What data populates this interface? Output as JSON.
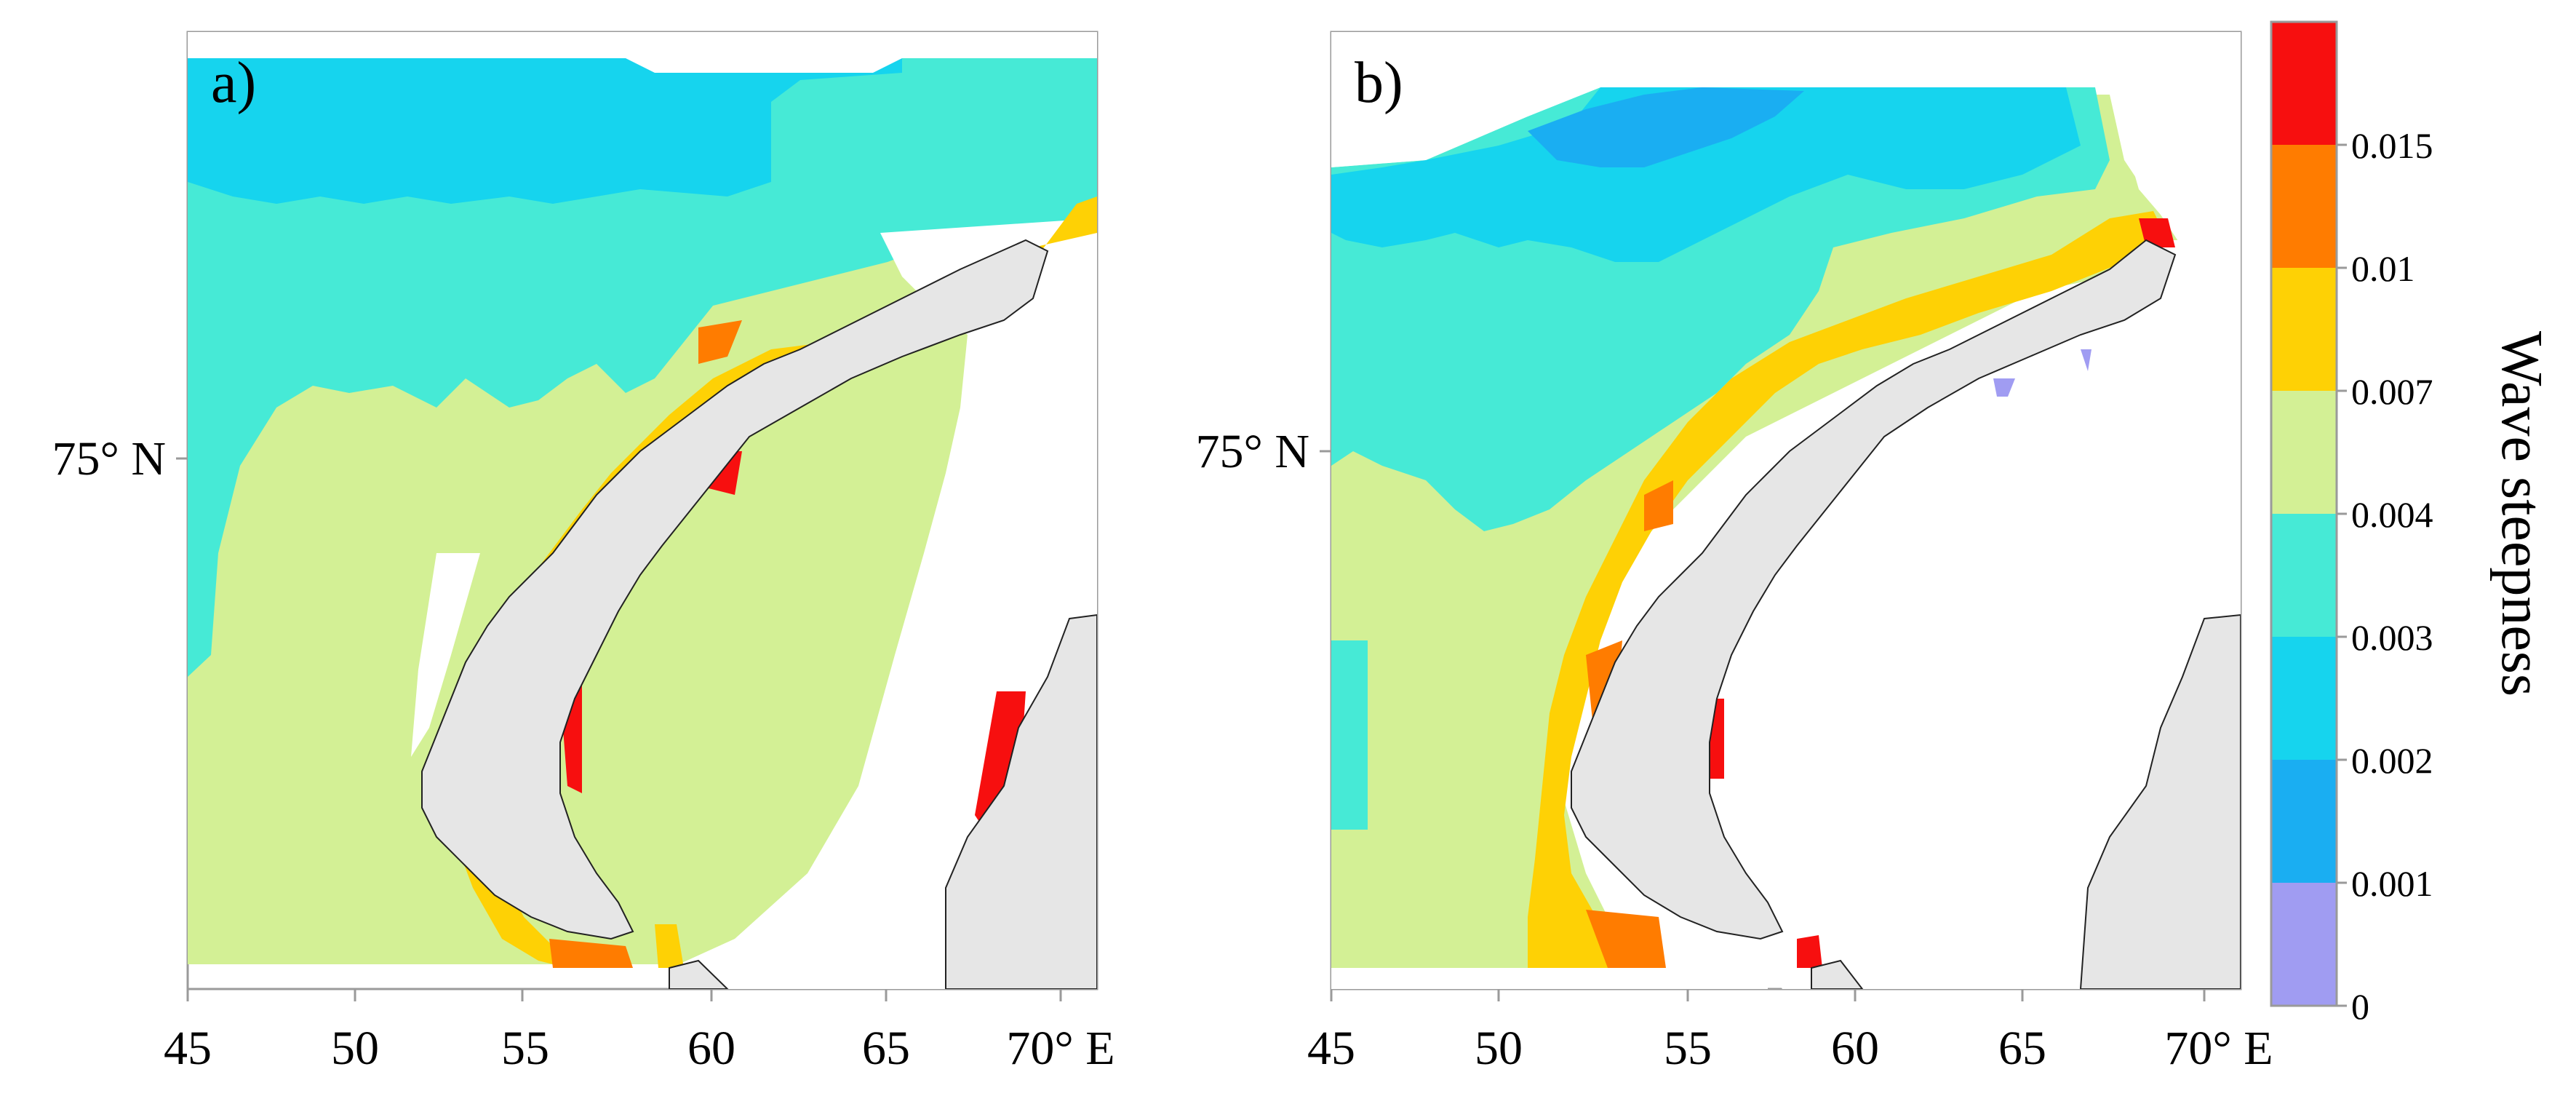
{
  "panels": [
    {
      "id": "a",
      "label": "a)",
      "lat_label": "75° N",
      "x_ticks": [
        "45",
        "50",
        "55",
        "60",
        "65",
        "70° E"
      ]
    },
    {
      "id": "b",
      "label": "b)",
      "lat_label": "75° N",
      "x_ticks": [
        "45",
        "50",
        "55",
        "60",
        "65",
        "70° E"
      ]
    }
  ],
  "colorbar": {
    "title": "Wave steepness",
    "tick_labels": [
      "0",
      "0.001",
      "0.002",
      "0.003",
      "0.004",
      "0.007",
      "0.01",
      "0.015"
    ],
    "bands": [
      {
        "range": "0-0.001",
        "color": "#a09cf2"
      },
      {
        "range": "0.001-0.002",
        "color": "#1aaef2"
      },
      {
        "range": "0.002-0.003",
        "color": "#16d4ee"
      },
      {
        "range": "0.003-0.004",
        "color": "#46ead6"
      },
      {
        "range": "0.004-0.007",
        "color": "#d3f095"
      },
      {
        "range": "0.007-0.01",
        "color": "#fed105"
      },
      {
        "range": "0.01-0.015",
        "color": "#ff7c00"
      },
      {
        "range": "0.015+",
        "color": "#f70f0f"
      }
    ]
  },
  "colors": {
    "land": "#e6e6e6",
    "coast": "#222222",
    "background": "#ffffff"
  }
}
